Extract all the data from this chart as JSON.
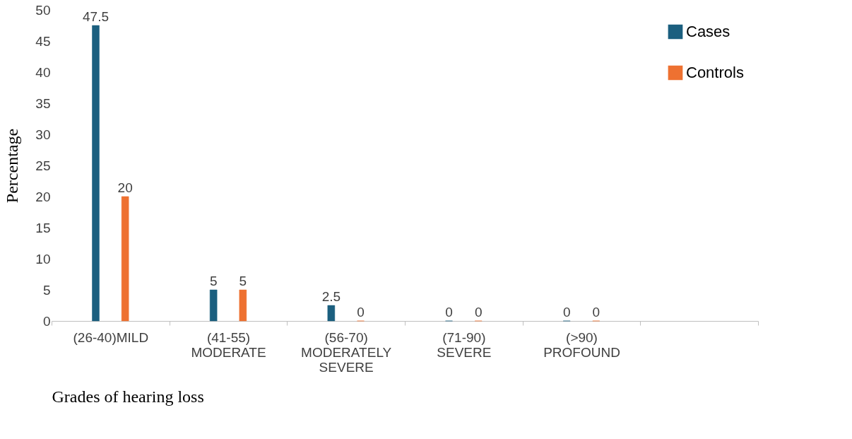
{
  "chart_data": {
    "type": "bar",
    "xlabel": "Grades of hearing loss",
    "ylabel": "Percentage",
    "categories": [
      "(26-40)MILD",
      "(41-55) MODERATE",
      "(56-70) MODERATELY SEVERE",
      "(71-90) SEVERE",
      "(>90) PROFOUND",
      null
    ],
    "series": [
      {
        "name": "Cases",
        "color": "#1b5f7f",
        "values": [
          47.5,
          5,
          2.5,
          0,
          0,
          null
        ]
      },
      {
        "name": "Controls",
        "color": "#ee7131",
        "values": [
          20,
          5,
          0,
          0,
          0,
          null
        ]
      }
    ],
    "ylim": [
      0,
      50
    ],
    "yticks": [
      0,
      5,
      10,
      15,
      20,
      25,
      30,
      35,
      40,
      45,
      50
    ],
    "data_labels": true,
    "grid": false,
    "legend": "top right"
  }
}
